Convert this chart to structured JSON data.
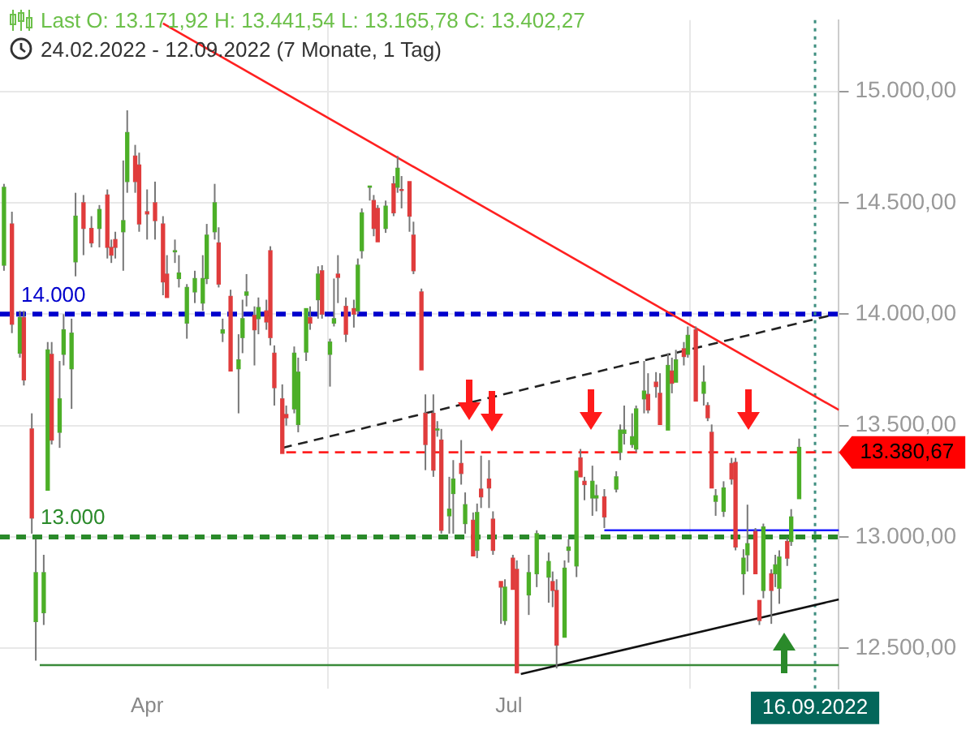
{
  "chart_data": {
    "type": "candlestick",
    "title": "Last  O: 13.171,92  H: 13.441,54  L: 13.165,78  C: 13.402,27",
    "subtitle": "24.02.2022 - 12.09.2022   (7 Monate, 1 Tag)",
    "x": [
      "2022-02-24",
      "2022-02-26",
      "2022-02-28",
      "2022-03-01",
      "2022-03-03",
      "2022-03-04",
      "2022-03-06",
      "2022-03-07",
      "2022-03-08",
      "2022-03-10",
      "2022-03-11",
      "2022-03-13",
      "2022-03-14",
      "2022-03-16",
      "2022-03-18",
      "2022-03-20",
      "2022-03-22",
      "2022-03-23",
      "2022-03-24",
      "2022-03-26",
      "2022-03-27",
      "2022-03-29",
      "2022-03-30",
      "2022-04-01",
      "2022-04-03",
      "2022-04-05",
      "2022-04-06",
      "2022-04-08",
      "2022-04-09",
      "2022-04-11",
      "2022-04-13",
      "2022-04-15",
      "2022-04-16",
      "2022-04-18",
      "2022-04-19",
      "2022-04-20",
      "2022-04-22",
      "2022-04-24",
      "2022-04-25",
      "2022-04-26",
      "2022-04-28",
      "2022-04-29",
      "2022-05-01",
      "2022-05-02",
      "2022-05-03",
      "2022-05-05",
      "2022-05-06",
      "2022-05-08",
      "2022-05-09",
      "2022-05-11",
      "2022-05-12",
      "2022-05-14",
      "2022-05-15",
      "2022-05-17",
      "2022-05-18",
      "2022-05-19",
      "2022-05-21",
      "2022-05-23",
      "2022-05-24",
      "2022-05-25",
      "2022-05-27",
      "2022-05-28",
      "2022-05-29",
      "2022-05-31",
      "2022-06-02",
      "2022-06-03",
      "2022-06-04",
      "2022-06-06",
      "2022-06-07",
      "2022-06-09",
      "2022-06-10",
      "2022-06-12",
      "2022-06-13",
      "2022-06-14",
      "2022-06-16",
      "2022-06-17",
      "2022-06-19",
      "2022-06-20",
      "2022-06-22",
      "2022-06-23",
      "2022-06-24",
      "2022-06-26",
      "2022-06-27",
      "2022-06-29",
      "2022-06-30",
      "2022-07-02",
      "2022-07-03",
      "2022-07-06",
      "2022-07-08",
      "2022-07-11",
      "2022-07-12",
      "2022-07-13",
      "2022-07-15",
      "2022-07-16",
      "2022-07-18",
      "2022-07-19",
      "2022-07-20",
      "2022-07-22",
      "2022-07-23",
      "2022-07-25",
      "2022-07-28",
      "2022-07-29",
      "2022-07-30",
      "2022-08-01",
      "2022-08-02",
      "2022-08-04",
      "2022-08-05",
      "2022-08-07",
      "2022-08-08",
      "2022-08-10",
      "2022-08-11",
      "2022-08-12",
      "2022-08-14",
      "2022-08-15",
      "2022-08-17",
      "2022-08-19",
      "2022-08-20",
      "2022-08-21",
      "2022-08-22",
      "2022-08-24",
      "2022-08-26",
      "2022-08-27",
      "2022-08-29",
      "2022-08-30",
      "2022-09-01",
      "2022-09-02",
      "2022-09-03",
      "2022-09-05",
      "2022-09-06",
      "2022-09-07",
      "2022-09-09",
      "2022-09-10",
      "2022-09-12"
    ],
    "ohlc": [
      [
        14220,
        14585,
        14195,
        14570
      ],
      [
        14405,
        14460,
        13915,
        13955
      ],
      [
        13825,
        14015,
        13805,
        13985
      ],
      [
        13985,
        14015,
        13680,
        13705
      ],
      [
        13485,
        13555,
        13015,
        13085
      ],
      [
        12620,
        12990,
        12445,
        12840
      ],
      [
        12660,
        12920,
        12605,
        12840
      ],
      [
        13210,
        13875,
        13200,
        13840
      ],
      [
        13820,
        13875,
        13415,
        13435
      ],
      [
        13470,
        13790,
        13400,
        13620
      ],
      [
        13820,
        14000,
        13770,
        13930
      ],
      [
        13755,
        13980,
        13575,
        13915
      ],
      [
        14235,
        14545,
        14170,
        14440
      ],
      [
        14500,
        14535,
        14265,
        14385
      ],
      [
        14385,
        14440,
        14300,
        14320
      ],
      [
        14385,
        14490,
        14300,
        14470
      ],
      [
        14535,
        14560,
        14250,
        14300
      ],
      [
        14300,
        14335,
        14230,
        14265
      ],
      [
        14335,
        14370,
        14250,
        14300
      ],
      [
        14370,
        14690,
        14195,
        14420
      ],
      [
        14595,
        14915,
        14545,
        14815
      ],
      [
        14710,
        14760,
        14545,
        14595
      ],
      [
        14670,
        14725,
        14370,
        14405
      ],
      [
        14460,
        14560,
        14335,
        14450
      ],
      [
        14500,
        14595,
        14335,
        14420
      ],
      [
        14405,
        14440,
        14085,
        14145
      ],
      [
        14180,
        14265,
        14065,
        14075
      ],
      [
        14280,
        14335,
        14230,
        14285
      ],
      [
        14160,
        14265,
        14120,
        14185
      ],
      [
        13960,
        14135,
        13890,
        14120
      ],
      [
        14100,
        14195,
        14050,
        14160
      ],
      [
        14050,
        14265,
        14015,
        14160
      ],
      [
        14160,
        14405,
        14135,
        14355
      ],
      [
        14370,
        14585,
        14335,
        14500
      ],
      [
        14320,
        14390,
        14120,
        14135
      ],
      [
        13915,
        13980,
        13875,
        13930
      ],
      [
        14080,
        14110,
        13735,
        13745
      ],
      [
        13755,
        13910,
        13555,
        13795
      ],
      [
        13895,
        14065,
        13825,
        13980
      ],
      [
        14085,
        14180,
        14035,
        14100
      ],
      [
        13995,
        14035,
        13770,
        13930
      ],
      [
        13980,
        14075,
        13910,
        14030
      ],
      [
        14015,
        14065,
        13930,
        13965
      ],
      [
        14285,
        14305,
        13860,
        13895
      ],
      [
        13825,
        13860,
        13590,
        13670
      ],
      [
        13620,
        13685,
        13370,
        13375
      ],
      [
        13550,
        13590,
        13500,
        13535
      ],
      [
        13575,
        13855,
        13555,
        13825
      ],
      [
        13505,
        13805,
        13470,
        13740
      ],
      [
        13830,
        14035,
        13790,
        14025
      ],
      [
        13985,
        14035,
        13930,
        13960
      ],
      [
        14065,
        14215,
        13980,
        14180
      ],
      [
        14195,
        14220,
        13980,
        14000
      ],
      [
        13820,
        13890,
        13675,
        13875
      ],
      [
        13960,
        14160,
        13945,
        13980
      ],
      [
        14180,
        14265,
        14050,
        14165
      ],
      [
        14035,
        14075,
        13875,
        13910
      ],
      [
        14025,
        14065,
        13940,
        14000
      ],
      [
        14015,
        14250,
        14000,
        14220
      ],
      [
        14285,
        14475,
        14250,
        14455
      ],
      [
        14570,
        14585,
        14510,
        14575
      ],
      [
        14510,
        14535,
        14350,
        14385
      ],
      [
        14475,
        14490,
        14315,
        14325
      ],
      [
        14385,
        14510,
        14365,
        14485
      ],
      [
        14585,
        14620,
        14440,
        14455
      ],
      [
        14570,
        14710,
        14545,
        14655
      ],
      [
        14560,
        14620,
        14475,
        14555
      ],
      [
        14595,
        14605,
        14370,
        14440
      ],
      [
        14355,
        14415,
        14180,
        14195
      ],
      [
        14100,
        14115,
        13745,
        13750
      ],
      [
        13555,
        13640,
        13300,
        13415
      ],
      [
        13555,
        13640,
        13270,
        13300
      ],
      [
        13480,
        13520,
        13450,
        13485
      ],
      [
        13435,
        13485,
        13015,
        13030
      ],
      [
        13095,
        13270,
        13015,
        13125
      ],
      [
        13195,
        13345,
        13015,
        13260
      ],
      [
        13330,
        13435,
        13235,
        13285
      ],
      [
        13060,
        13200,
        13015,
        13145
      ],
      [
        13075,
        13110,
        12910,
        12915
      ],
      [
        12940,
        13150,
        12905,
        13110
      ],
      [
        13215,
        13365,
        13130,
        13180
      ],
      [
        13260,
        13345,
        13130,
        13220
      ],
      [
        13080,
        13115,
        12920,
        12940
      ],
      [
        12800,
        12810,
        12610,
        12775
      ],
      [
        12625,
        12810,
        12605,
        12775
      ],
      [
        12905,
        12920,
        12760,
        12765
      ],
      [
        12855,
        12895,
        12385,
        12390
      ],
      [
        12740,
        12920,
        12650,
        12840
      ],
      [
        12835,
        13030,
        12775,
        13015
      ],
      [
        12820,
        12930,
        12705,
        12890
      ],
      [
        12800,
        12845,
        12685,
        12760
      ],
      [
        12760,
        12810,
        12410,
        12515
      ],
      [
        12550,
        12895,
        12540,
        12860
      ],
      [
        12940,
        12990,
        12885,
        12955
      ],
      [
        12870,
        13300,
        12820,
        13295
      ],
      [
        13355,
        13395,
        13260,
        13270
      ],
      [
        13250,
        13270,
        13165,
        13235
      ],
      [
        13175,
        13320,
        13095,
        13250
      ],
      [
        13175,
        13235,
        13115,
        13185
      ],
      [
        13180,
        13215,
        13040,
        13090
      ],
      [
        13215,
        13295,
        13200,
        13270
      ],
      [
        13380,
        13505,
        13345,
        13480
      ],
      [
        13465,
        13590,
        13415,
        13480
      ],
      [
        13415,
        13555,
        13400,
        13450
      ],
      [
        13395,
        13590,
        13380,
        13575
      ],
      [
        13620,
        13790,
        13555,
        13655
      ],
      [
        13640,
        13735,
        13555,
        13570
      ],
      [
        13695,
        13740,
        13625,
        13675
      ],
      [
        13645,
        13735,
        13500,
        13505
      ],
      [
        13480,
        13825,
        13470,
        13770
      ],
      [
        13745,
        13805,
        13645,
        13690
      ],
      [
        13695,
        13840,
        13685,
        13795
      ],
      [
        13845,
        13875,
        13770,
        13810
      ],
      [
        13820,
        13945,
        13805,
        13905
      ],
      [
        13930,
        13945,
        13605,
        13610
      ],
      [
        13645,
        13770,
        13590,
        13695
      ],
      [
        13590,
        13605,
        13520,
        13535
      ],
      [
        13470,
        13505,
        13215,
        13220
      ],
      [
        13160,
        13215,
        13095,
        13185
      ],
      [
        13115,
        13250,
        13090,
        13220
      ],
      [
        13330,
        13355,
        13235,
        13260
      ],
      [
        13335,
        13355,
        12940,
        12955
      ],
      [
        12835,
        12945,
        12740,
        12905
      ],
      [
        12920,
        13145,
        12845,
        12970
      ],
      [
        13025,
        13040,
        12825,
        12835
      ],
      [
        12715,
        12725,
        12605,
        12625
      ],
      [
        12760,
        13060,
        12725,
        13045
      ],
      [
        12835,
        12855,
        12610,
        12760
      ],
      [
        12835,
        12920,
        12775,
        12875
      ],
      [
        12770,
        12940,
        12700,
        12910
      ],
      [
        12980,
        12995,
        12870,
        12905
      ],
      [
        12980,
        13125,
        12960,
        13090
      ],
      [
        13171.92,
        13441.54,
        13165.78,
        13402.27
      ]
    ],
    "colors": [
      "#4caf27",
      "#e03c3c",
      "#4caf27",
      "#e03c3c",
      "#e03c3c",
      "#4caf27",
      "#4caf27",
      "#4caf27",
      "#e03c3c",
      "#4caf27",
      "#4caf27",
      "#4caf27",
      "#4caf27",
      "#e03c3c",
      "#e03c3c",
      "#4caf27",
      "#e03c3c",
      "#e03c3c",
      "#e03c3c",
      "#4caf27",
      "#4caf27",
      "#e03c3c",
      "#e03c3c",
      "#e03c3c",
      "#e03c3c",
      "#e03c3c",
      "#e03c3c",
      "#4caf27",
      "#4caf27",
      "#4caf27",
      "#4caf27",
      "#4caf27",
      "#4caf27",
      "#4caf27",
      "#e03c3c",
      "#4caf27",
      "#e03c3c",
      "#4caf27",
      "#4caf27",
      "#4caf27",
      "#e03c3c",
      "#4caf27",
      "#e03c3c",
      "#e03c3c",
      "#e03c3c",
      "#e03c3c",
      "#e03c3c",
      "#4caf27",
      "#4caf27",
      "#4caf27",
      "#e03c3c",
      "#4caf27",
      "#e03c3c",
      "#4caf27",
      "#4caf27",
      "#e03c3c",
      "#e03c3c",
      "#e03c3c",
      "#4caf27",
      "#4caf27",
      "#4caf27",
      "#e03c3c",
      "#e03c3c",
      "#4caf27",
      "#e03c3c",
      "#4caf27",
      "#e03c3c",
      "#e03c3c",
      "#e03c3c",
      "#e03c3c",
      "#e03c3c",
      "#e03c3c",
      "#4caf27",
      "#e03c3c",
      "#4caf27",
      "#4caf27",
      "#e03c3c",
      "#4caf27",
      "#e03c3c",
      "#4caf27",
      "#e03c3c",
      "#e03c3c",
      "#e03c3c",
      "#e03c3c",
      "#4caf27",
      "#e03c3c",
      "#e03c3c",
      "#4caf27",
      "#4caf27",
      "#4caf27",
      "#e03c3c",
      "#e03c3c",
      "#4caf27",
      "#4caf27",
      "#4caf27",
      "#e03c3c",
      "#e03c3c",
      "#4caf27",
      "#4caf27",
      "#e03c3c",
      "#4caf27",
      "#4caf27",
      "#4caf27",
      "#4caf27",
      "#4caf27",
      "#4caf27",
      "#e03c3c",
      "#e03c3c",
      "#e03c3c",
      "#4caf27",
      "#e03c3c",
      "#4caf27",
      "#e03c3c",
      "#4caf27",
      "#e03c3c",
      "#4caf27",
      "#e03c3c",
      "#e03c3c",
      "#4caf27",
      "#4caf27",
      "#e03c3c",
      "#e03c3c",
      "#4caf27",
      "#4caf27",
      "#e03c3c",
      "#e03c3c",
      "#4caf27",
      "#e03c3c",
      "#4caf27",
      "#4caf27",
      "#e03c3c",
      "#4caf27",
      "#4caf27"
    ],
    "series": [
      {
        "type": "line",
        "x": [
          "2022-04-05",
          "2022-09-22"
        ],
        "values": [
          15305,
          13570
        ],
        "color": "#ff2020",
        "line_style": "solid"
      },
      {
        "type": "line",
        "x": [
          "2022-05-05",
          "2022-09-20"
        ],
        "values": [
          13400,
          13995
        ],
        "color": "#222222",
        "line_style": "dashed"
      },
      {
        "type": "line",
        "x": [
          "2022-07-04",
          "2022-09-22"
        ],
        "values": [
          12385,
          12720
        ],
        "color": "#111111",
        "line_style": "solid"
      },
      {
        "type": "line",
        "x": [
          "2022-05-06",
          "2022-09-22"
        ],
        "values": [
          13380,
          13380
        ],
        "color": "#ff2020",
        "line_style": "dashed",
        "name": "13.380,67"
      },
      {
        "type": "line",
        "x": [
          "2022-07-25",
          "2022-09-22"
        ],
        "values": [
          13030,
          13030
        ],
        "color": "#1a1aff",
        "line_style": "solid"
      },
      {
        "type": "line",
        "x": [
          "2022-03-05",
          "2022-09-22"
        ],
        "values": [
          12425,
          12425
        ],
        "color": "#3a8a3a",
        "line_style": "solid"
      }
    ],
    "ref_lines": [
      {
        "axis": "y",
        "value": 14000,
        "label": "14.000",
        "color": "#0000cc",
        "line_style": "dashed"
      },
      {
        "axis": "y",
        "value": 13000,
        "label": "13.000",
        "color": "#2a8a2a",
        "line_style": "dashed"
      },
      {
        "axis": "x",
        "value": "2022-09-16",
        "label": "16.09.2022",
        "color": "#3f8f80",
        "line_style": "dotted"
      }
    ],
    "xlim": [
      "2022-02-23",
      "2022-09-22"
    ],
    "xticks": [
      {
        "value": "2022-04-01",
        "label": "Apr"
      },
      {
        "value": "2022-07-01",
        "label": "Jul"
      }
    ],
    "ylim": [
      12320,
      15320
    ],
    "yticks": [
      {
        "value": 12500,
        "label": "12.500,00"
      },
      {
        "value": 13000,
        "label": "13.000,00"
      },
      {
        "value": 13500,
        "label": "13.500,00"
      },
      {
        "value": 14000,
        "label": "14.000,00"
      },
      {
        "value": 14500,
        "label": "14.500,00"
      },
      {
        "value": 15000,
        "label": "15.000,00"
      }
    ],
    "grid": true,
    "legend": false,
    "marker": "none"
  }
}
